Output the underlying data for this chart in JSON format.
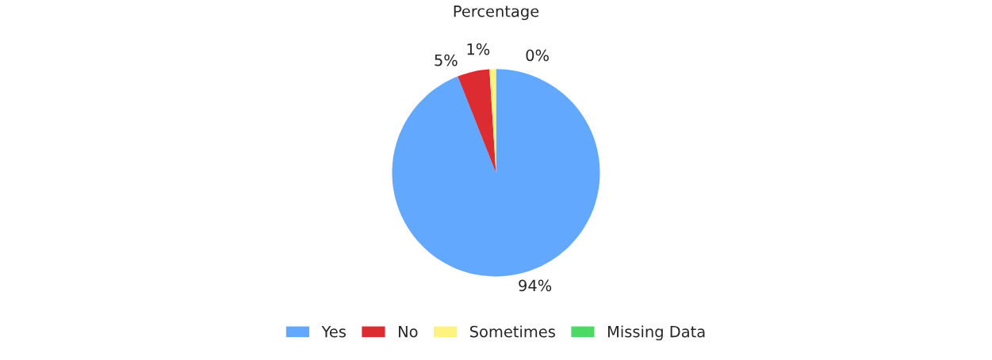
{
  "chart_data": {
    "type": "pie",
    "title": "Percentage",
    "categories": [
      "Yes",
      "No",
      "Sometimes",
      "Missing Data"
    ],
    "values": [
      94,
      5,
      1,
      0
    ],
    "colors": [
      "#63a8ff",
      "#dc2c32",
      "#fff380",
      "#4cd964"
    ],
    "value_labels": [
      "94%",
      "5%",
      "1%",
      "0%"
    ],
    "legend": "bottom"
  }
}
